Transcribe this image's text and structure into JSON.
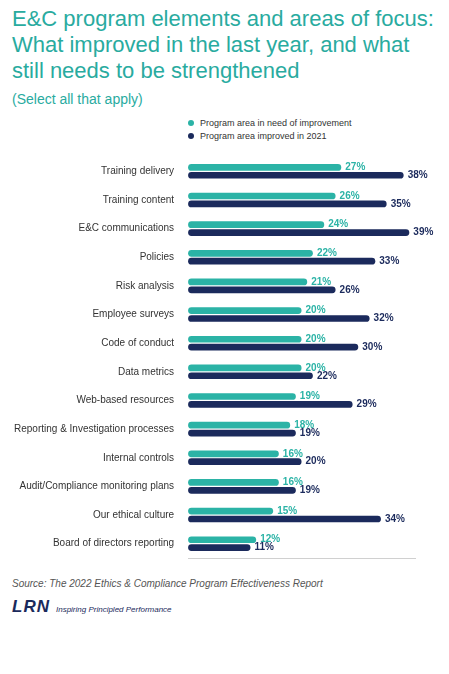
{
  "chart_data": {
    "type": "bar",
    "orientation": "horizontal",
    "title": "E&C program elements and areas of focus: What improved in the last year, and what still needs to be strengthened",
    "subtitle": "(Select all that apply)",
    "categories": [
      "Training delivery",
      "Training content",
      "E&C communications",
      "Policies",
      "Risk analysis",
      "Employee surveys",
      "Code of conduct",
      "Data metrics",
      "Web-based resources",
      "Reporting & Investigation processes",
      "Internal controls",
      "Audit/Compliance monitoring plans",
      "Our ethical culture",
      "Board of directors reporting"
    ],
    "series": [
      {
        "name": "Program area in need of improvement",
        "color": "#2bb3a6",
        "values": [
          27,
          26,
          24,
          22,
          21,
          20,
          20,
          20,
          19,
          18,
          16,
          16,
          15,
          12
        ],
        "value_labels": [
          "27%",
          "26%",
          "24%",
          "22%",
          "21%",
          "20%",
          "20%",
          "20%",
          "19%",
          "18%",
          "16%",
          "16%",
          "15%",
          "12%"
        ]
      },
      {
        "name": "Program area improved in 2021",
        "color": "#1b2a5c",
        "values": [
          38,
          35,
          39,
          33,
          26,
          32,
          30,
          22,
          29,
          19,
          20,
          19,
          34,
          11
        ],
        "value_labels": [
          "38%",
          "35%",
          "39%",
          "33%",
          "26%",
          "32%",
          "30%",
          "22%",
          "29%",
          "19%",
          "20%",
          "19%",
          "34%",
          "11%"
        ]
      }
    ],
    "xlim": [
      0,
      40
    ],
    "grid": false,
    "legend": "top",
    "data_labels": true,
    "tick_labels": "y",
    "annotations": [
      "Source: The 2022 Ethics & Compliance Program Effectiveness Report",
      "LRN",
      "Inspiring Principled Performance"
    ]
  }
}
